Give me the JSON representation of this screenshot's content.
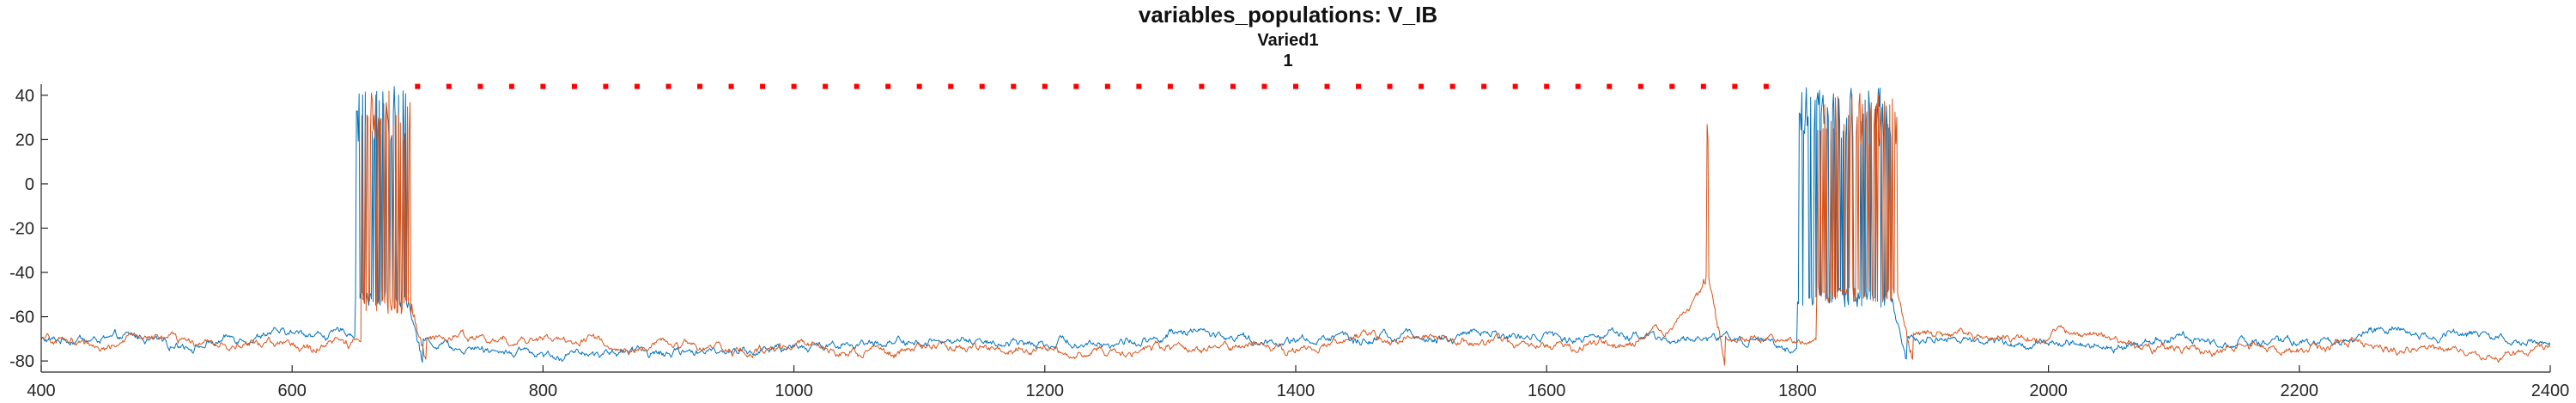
{
  "chart_data": {
    "type": "line",
    "title": "variables_populations: V_IB",
    "subtitle": "Varied1",
    "subtitle2": "1",
    "xlabel": "",
    "ylabel": "",
    "xlim": [
      400,
      2400
    ],
    "ylim": [
      -85,
      45
    ],
    "xticks": [
      "400",
      "600",
      "800",
      "1000",
      "1200",
      "1400",
      "1600",
      "1800",
      "2000",
      "2200",
      "2400"
    ],
    "yticks": [
      "40",
      "20",
      "0",
      "-20",
      "-40",
      "-60",
      "-80"
    ],
    "grid": false,
    "legend": "none",
    "colors": {
      "series1": "#0072BD",
      "series2": "#D95319",
      "marker": "#FF0000"
    },
    "series": [
      {
        "color": "#0072BD",
        "baseline": -70,
        "bursts": [
          {
            "x_start": 650,
            "x_end": 692,
            "peak": 44,
            "trough": -52
          },
          {
            "x_start": 1800,
            "x_end": 1875,
            "peak": 44,
            "trough": -52
          }
        ]
      },
      {
        "color": "#D95319",
        "baseline": -71,
        "bursts": [
          {
            "x_start": 655,
            "x_end": 695,
            "peak": 42,
            "trough": -55
          },
          {
            "x_start": 1725,
            "x_end": 1730,
            "peak": 40,
            "trough": -45
          },
          {
            "x_start": 1815,
            "x_end": 1880,
            "peak": 42,
            "trough": -50
          }
        ]
      }
    ],
    "markers": {
      "y": 44,
      "x": [
        700,
        725,
        750,
        775,
        800,
        825,
        850,
        875,
        900,
        925,
        950,
        975,
        1000,
        1025,
        1050,
        1075,
        1100,
        1125,
        1150,
        1175,
        1200,
        1225,
        1250,
        1275,
        1300,
        1325,
        1350,
        1375,
        1400,
        1425,
        1450,
        1475,
        1500,
        1525,
        1550,
        1575,
        1600,
        1625,
        1650,
        1675,
        1700,
        1725,
        1750,
        1775
      ]
    }
  }
}
